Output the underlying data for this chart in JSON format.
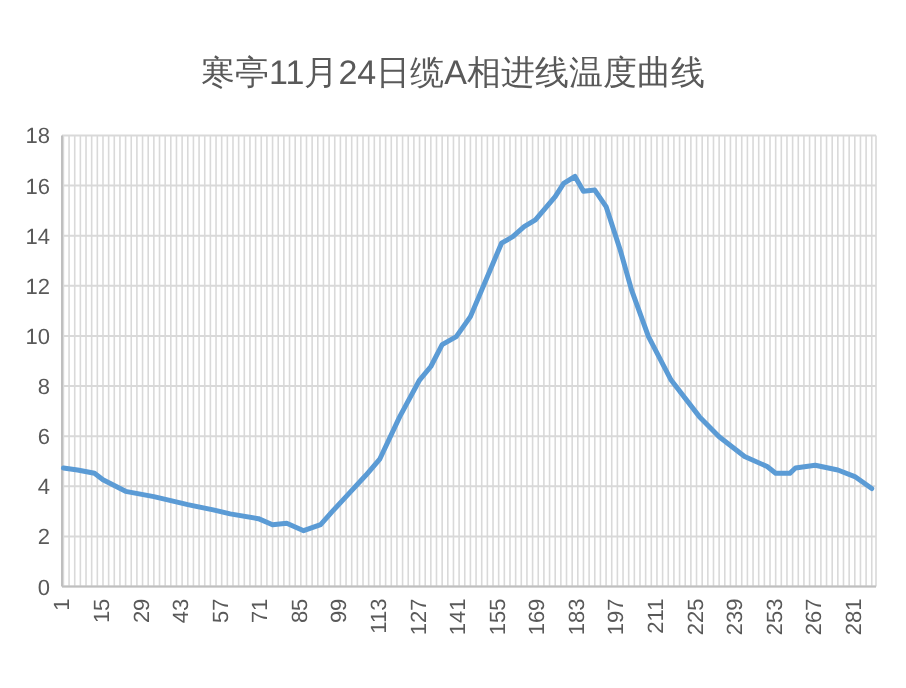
{
  "chart_data": {
    "type": "line",
    "title": "寒亭11月24日缆A相进线温度曲线",
    "xlim": [
      0.5,
      288.5
    ],
    "xticks": [
      1,
      15,
      29,
      43,
      57,
      71,
      85,
      99,
      113,
      127,
      141,
      155,
      169,
      183,
      197,
      211,
      225,
      239,
      253,
      267,
      281
    ],
    "ylim": [
      0,
      18
    ],
    "yticks": [
      0,
      2,
      4,
      6,
      8,
      10,
      12,
      14,
      16,
      18
    ],
    "grid": true,
    "marker": "none",
    "line_style": "solid",
    "series": [
      {
        "color": "#5b9bd5",
        "x": [
          1,
          6,
          12,
          15,
          23,
          33,
          45,
          54,
          60,
          70,
          75,
          80,
          86,
          92,
          96,
          101,
          108,
          113,
          120,
          127,
          131,
          135,
          140,
          145,
          152,
          156,
          160,
          164,
          168,
          175,
          178,
          182,
          185,
          189,
          193,
          198,
          202,
          208,
          216,
          226,
          233,
          242,
          250,
          253,
          258,
          260,
          267,
          275,
          281,
          287
        ],
        "values": [
          4.73,
          4.65,
          4.52,
          4.26,
          3.8,
          3.59,
          3.27,
          3.06,
          2.9,
          2.71,
          2.47,
          2.53,
          2.23,
          2.47,
          2.98,
          3.59,
          4.44,
          5.1,
          6.78,
          8.24,
          8.78,
          9.65,
          9.97,
          10.77,
          12.63,
          13.7,
          13.96,
          14.36,
          14.63,
          15.56,
          16.09,
          16.36,
          15.77,
          15.82,
          15.16,
          13.43,
          11.84,
          9.97,
          8.24,
          6.78,
          5.98,
          5.19,
          4.79,
          4.52,
          4.52,
          4.73,
          4.84,
          4.65,
          4.39,
          3.91
        ]
      }
    ]
  }
}
